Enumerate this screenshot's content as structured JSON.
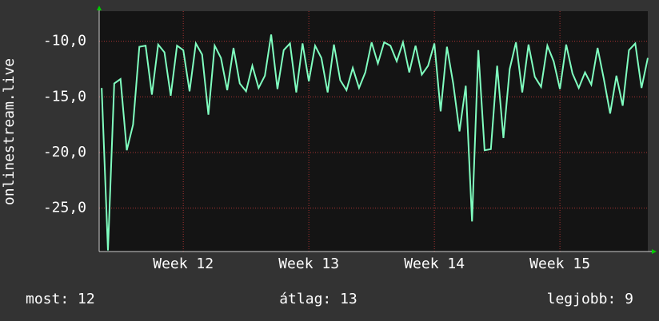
{
  "chart_data": {
    "type": "line",
    "ylabel": "onlinestream.live",
    "x": [
      11.35,
      11.4,
      11.45,
      11.5,
      11.55,
      11.6,
      11.65,
      11.7,
      11.75,
      11.8,
      11.85,
      11.9,
      11.95,
      12.0,
      12.05,
      12.1,
      12.15,
      12.2,
      12.25,
      12.3,
      12.35,
      12.4,
      12.45,
      12.5,
      12.55,
      12.6,
      12.65,
      12.7,
      12.75,
      12.8,
      12.85,
      12.9,
      12.95,
      13.0,
      13.05,
      13.1,
      13.15,
      13.2,
      13.25,
      13.3,
      13.35,
      13.4,
      13.45,
      13.5,
      13.55,
      13.6,
      13.65,
      13.7,
      13.75,
      13.8,
      13.85,
      13.9,
      13.95,
      14.0,
      14.05,
      14.1,
      14.15,
      14.2,
      14.25,
      14.3,
      14.35,
      14.4,
      14.45,
      14.5,
      14.55,
      14.6,
      14.65,
      14.7,
      14.75,
      14.8,
      14.85,
      14.9,
      14.95,
      15.0,
      15.05,
      15.1,
      15.15,
      15.2,
      15.25,
      15.3,
      15.35,
      15.4,
      15.45,
      15.5,
      15.55,
      15.6,
      15.65,
      15.7
    ],
    "series": [
      {
        "color": "#80ffc0",
        "values": [
          -14.2,
          -28.8,
          -13.8,
          -13.4,
          -19.8,
          -17.5,
          -10.5,
          -10.4,
          -14.8,
          -10.3,
          -11.0,
          -14.9,
          -10.4,
          -10.8,
          -14.5,
          -10.2,
          -11.2,
          -16.6,
          -10.4,
          -11.5,
          -14.4,
          -10.6,
          -13.8,
          -14.5,
          -12.2,
          -14.2,
          -13.1,
          -9.4,
          -14.3,
          -10.8,
          -10.2,
          -14.6,
          -10.2,
          -13.6,
          -10.4,
          -11.5,
          -14.6,
          -10.3,
          -13.5,
          -14.4,
          -12.4,
          -14.2,
          -12.8,
          -10.1,
          -12.0,
          -10.1,
          -10.4,
          -11.8,
          -10.1,
          -12.8,
          -10.4,
          -13.0,
          -12.2,
          -10.2,
          -16.3,
          -10.5,
          -13.8,
          -18.1,
          -14.0,
          -26.2,
          -10.8,
          -19.8,
          -19.7,
          -12.2,
          -18.7,
          -12.5,
          -10.1,
          -14.6,
          -10.3,
          -13.2,
          -14.1,
          -10.4,
          -11.8,
          -14.3,
          -10.3,
          -12.9,
          -14.2,
          -12.8,
          -13.9,
          -10.6,
          -13.4,
          -16.5,
          -13.1,
          -15.8,
          -10.8,
          -10.2,
          -14.2,
          -11.5
        ]
      }
    ],
    "xlim": [
      11.33,
      15.7
    ],
    "xticks": [
      {
        "value": 12,
        "label": "Week 12"
      },
      {
        "value": 13,
        "label": "Week 13"
      },
      {
        "value": 14,
        "label": "Week 14"
      },
      {
        "value": 15,
        "label": "Week 15"
      }
    ],
    "ylim": [
      -28.9,
      -7.3
    ],
    "yticks": [
      {
        "value": -10,
        "label": "-10,0"
      },
      {
        "value": -15,
        "label": "-15,0"
      },
      {
        "value": -20,
        "label": "-20,0"
      },
      {
        "value": -25,
        "label": "-25,0"
      }
    ],
    "grid": true
  },
  "footer": {
    "current": "most: 12",
    "average": "átlag: 13",
    "best": "legjobb: 9"
  }
}
